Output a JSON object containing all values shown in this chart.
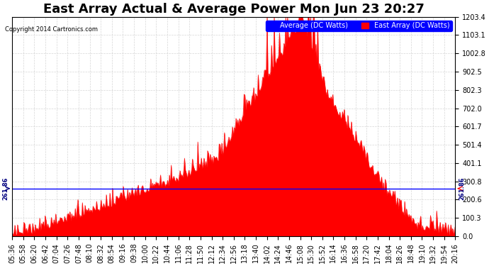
{
  "title": "East Array Actual & Average Power Mon Jun 23 20:27",
  "copyright": "Copyright 2014 Cartronics.com",
  "ylabel_right_vals": [
    0.0,
    100.3,
    200.6,
    300.8,
    401.1,
    501.4,
    601.7,
    702.0,
    802.3,
    902.5,
    1002.8,
    1103.1,
    1203.4
  ],
  "ymax": 1203.4,
  "ymin": 0.0,
  "avg_line": 261.86,
  "legend_avg_label": "Average (DC Watts)",
  "legend_east_label": "East Array (DC Watts)",
  "legend_avg_color": "#0000ff",
  "legend_east_color": "#ff0000",
  "fill_color": "#ff0000",
  "avg_line_color": "#0000ff",
  "avg_annotation_color": "#0000cc",
  "background_color": "#ffffff",
  "grid_color": "#cccccc",
  "title_fontsize": 13,
  "tick_fontsize": 7,
  "x_tick_labels": [
    "05:36",
    "05:58",
    "06:20",
    "06:42",
    "07:04",
    "07:26",
    "07:48",
    "08:10",
    "08:32",
    "08:54",
    "09:16",
    "09:38",
    "10:00",
    "10:22",
    "10:44",
    "11:06",
    "11:28",
    "11:50",
    "12:12",
    "12:34",
    "12:56",
    "13:18",
    "13:40",
    "14:02",
    "14:24",
    "14:46",
    "15:08",
    "15:30",
    "15:52",
    "16:14",
    "16:36",
    "16:58",
    "17:20",
    "17:42",
    "18:04",
    "18:26",
    "18:48",
    "19:10",
    "19:32",
    "19:54",
    "20:16"
  ],
  "num_points": 500
}
